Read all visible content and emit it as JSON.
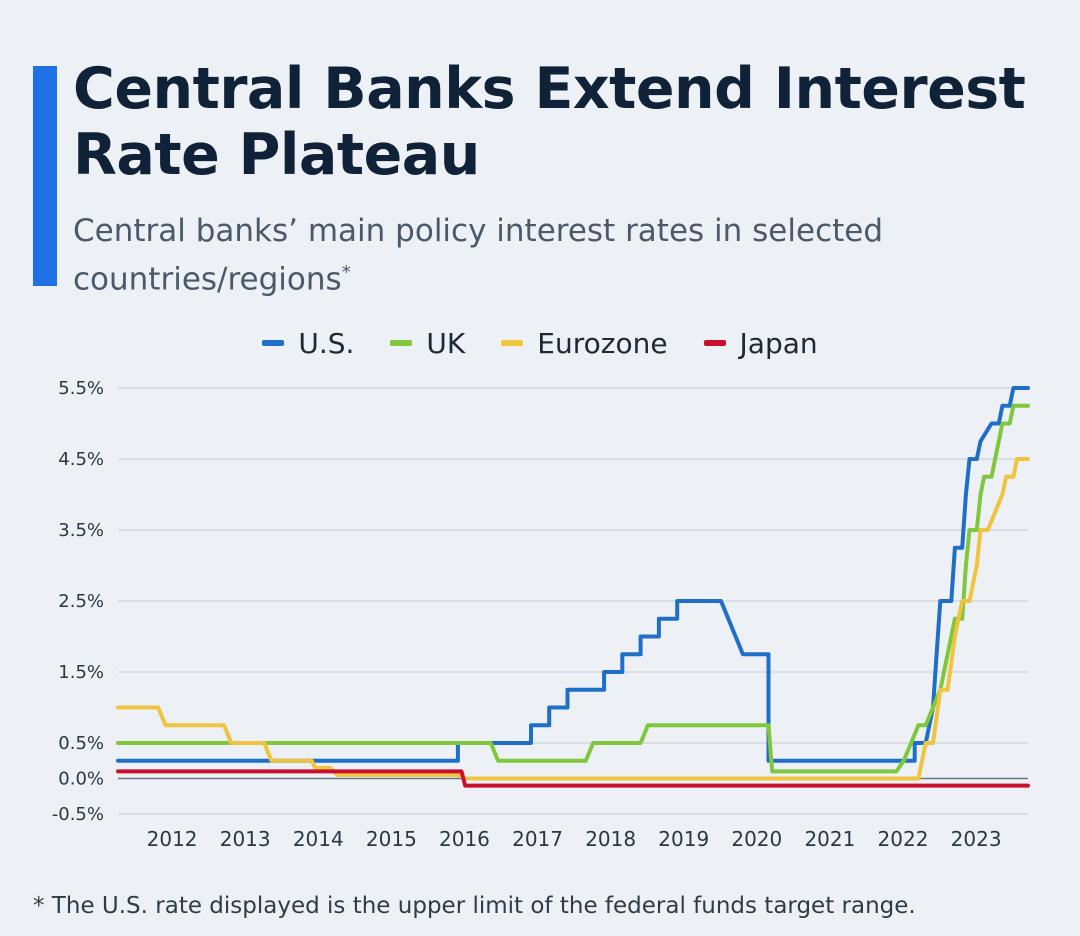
{
  "header": {
    "title": "Central Banks Extend Interest Rate Plateau",
    "subtitle": "Central banks’ main policy interest rates in selected countries/regions",
    "subtitle_mark": "*"
  },
  "footnote": "* The U.S. rate displayed is the upper limit of the federal funds target range.",
  "colors": {
    "accent": "#1f6fe5",
    "background": "#edf1f5",
    "grid": "#c5ccd6",
    "zero_line": "#6b7480"
  },
  "chart_data": {
    "type": "line",
    "title": "Central Banks Extend Interest Rate Plateau",
    "xlabel": "",
    "ylabel": "",
    "xlim": [
      2011.3,
      2023.75
    ],
    "ylim": [
      -0.5,
      5.5
    ],
    "y_ticks": [
      {
        "value": 5.5,
        "label": "5.5%"
      },
      {
        "value": 4.5,
        "label": "4.5%"
      },
      {
        "value": 3.5,
        "label": "3.5%"
      },
      {
        "value": 2.5,
        "label": "2.5%"
      },
      {
        "value": 1.5,
        "label": "1.5%"
      },
      {
        "value": 0.5,
        "label": "0.5%"
      },
      {
        "value": 0.0,
        "label": "0.0%"
      },
      {
        "value": -0.5,
        "label": "-0.5%"
      }
    ],
    "x_ticks": [
      {
        "value": 2012,
        "label": "2012"
      },
      {
        "value": 2013,
        "label": "2013"
      },
      {
        "value": 2014,
        "label": "2014"
      },
      {
        "value": 2015,
        "label": "2015"
      },
      {
        "value": 2016,
        "label": "2016"
      },
      {
        "value": 2017,
        "label": "2017"
      },
      {
        "value": 2018,
        "label": "2018"
      },
      {
        "value": 2019,
        "label": "2019"
      },
      {
        "value": 2020,
        "label": "2020"
      },
      {
        "value": 2021,
        "label": "2021"
      },
      {
        "value": 2022,
        "label": "2022"
      },
      {
        "value": 2023,
        "label": "2023"
      }
    ],
    "grid": true,
    "legend_position": "top-center",
    "series": [
      {
        "name": "U.S.",
        "color": "#1f6fc9",
        "points": [
          [
            2011.3,
            0.25
          ],
          [
            2015.95,
            0.25
          ],
          [
            2015.95,
            0.5
          ],
          [
            2016.95,
            0.5
          ],
          [
            2016.95,
            0.75
          ],
          [
            2017.2,
            0.75
          ],
          [
            2017.2,
            1.0
          ],
          [
            2017.45,
            1.0
          ],
          [
            2017.45,
            1.25
          ],
          [
            2017.95,
            1.25
          ],
          [
            2017.95,
            1.5
          ],
          [
            2018.2,
            1.5
          ],
          [
            2018.2,
            1.75
          ],
          [
            2018.45,
            1.75
          ],
          [
            2018.45,
            2.0
          ],
          [
            2018.7,
            2.0
          ],
          [
            2018.7,
            2.25
          ],
          [
            2018.95,
            2.25
          ],
          [
            2018.95,
            2.5
          ],
          [
            2019.55,
            2.5
          ],
          [
            2019.85,
            1.75
          ],
          [
            2020.2,
            1.75
          ],
          [
            2020.2,
            0.25
          ],
          [
            2022.2,
            0.25
          ],
          [
            2022.2,
            0.5
          ],
          [
            2022.35,
            0.5
          ],
          [
            2022.45,
            1.0
          ],
          [
            2022.5,
            1.75
          ],
          [
            2022.55,
            2.5
          ],
          [
            2022.7,
            2.5
          ],
          [
            2022.75,
            3.25
          ],
          [
            2022.85,
            3.25
          ],
          [
            2022.9,
            4.0
          ],
          [
            2022.95,
            4.5
          ],
          [
            2023.05,
            4.5
          ],
          [
            2023.1,
            4.75
          ],
          [
            2023.25,
            5.0
          ],
          [
            2023.35,
            5.0
          ],
          [
            2023.4,
            5.25
          ],
          [
            2023.5,
            5.25
          ],
          [
            2023.55,
            5.5
          ],
          [
            2023.75,
            5.5
          ]
        ]
      },
      {
        "name": "UK",
        "color": "#7fc73c",
        "points": [
          [
            2011.3,
            0.5
          ],
          [
            2016.4,
            0.5
          ],
          [
            2016.5,
            0.25
          ],
          [
            2017.7,
            0.25
          ],
          [
            2017.8,
            0.5
          ],
          [
            2018.45,
            0.5
          ],
          [
            2018.55,
            0.75
          ],
          [
            2020.2,
            0.75
          ],
          [
            2020.25,
            0.1
          ],
          [
            2021.95,
            0.1
          ],
          [
            2022.05,
            0.25
          ],
          [
            2022.15,
            0.5
          ],
          [
            2022.25,
            0.75
          ],
          [
            2022.35,
            0.75
          ],
          [
            2022.45,
            1.0
          ],
          [
            2022.55,
            1.25
          ],
          [
            2022.65,
            1.75
          ],
          [
            2022.75,
            2.25
          ],
          [
            2022.85,
            2.25
          ],
          [
            2022.9,
            3.0
          ],
          [
            2022.95,
            3.5
          ],
          [
            2023.05,
            3.5
          ],
          [
            2023.1,
            4.0
          ],
          [
            2023.15,
            4.25
          ],
          [
            2023.25,
            4.25
          ],
          [
            2023.3,
            4.5
          ],
          [
            2023.4,
            5.0
          ],
          [
            2023.5,
            5.0
          ],
          [
            2023.55,
            5.25
          ],
          [
            2023.75,
            5.25
          ]
        ]
      },
      {
        "name": "Eurozone",
        "color": "#f0c43e",
        "points": [
          [
            2011.3,
            1.0
          ],
          [
            2011.85,
            1.0
          ],
          [
            2011.95,
            0.75
          ],
          [
            2012.75,
            0.75
          ],
          [
            2012.85,
            0.5
          ],
          [
            2013.3,
            0.5
          ],
          [
            2013.4,
            0.25
          ],
          [
            2013.95,
            0.25
          ],
          [
            2014.0,
            0.15
          ],
          [
            2014.2,
            0.15
          ],
          [
            2014.3,
            0.05
          ],
          [
            2015.95,
            0.05
          ],
          [
            2016.05,
            0.0
          ],
          [
            2022.25,
            0.0
          ],
          [
            2022.35,
            0.5
          ],
          [
            2022.45,
            0.5
          ],
          [
            2022.55,
            1.25
          ],
          [
            2022.65,
            1.25
          ],
          [
            2022.75,
            2.0
          ],
          [
            2022.85,
            2.5
          ],
          [
            2022.95,
            2.5
          ],
          [
            2023.05,
            3.0
          ],
          [
            2023.1,
            3.5
          ],
          [
            2023.2,
            3.5
          ],
          [
            2023.3,
            3.75
          ],
          [
            2023.4,
            4.0
          ],
          [
            2023.45,
            4.25
          ],
          [
            2023.55,
            4.25
          ],
          [
            2023.6,
            4.5
          ],
          [
            2023.75,
            4.5
          ]
        ]
      },
      {
        "name": "Japan",
        "color": "#c8102e",
        "points": [
          [
            2011.3,
            0.1
          ],
          [
            2016.0,
            0.1
          ],
          [
            2016.05,
            -0.1
          ],
          [
            2023.75,
            -0.1
          ]
        ]
      }
    ]
  }
}
